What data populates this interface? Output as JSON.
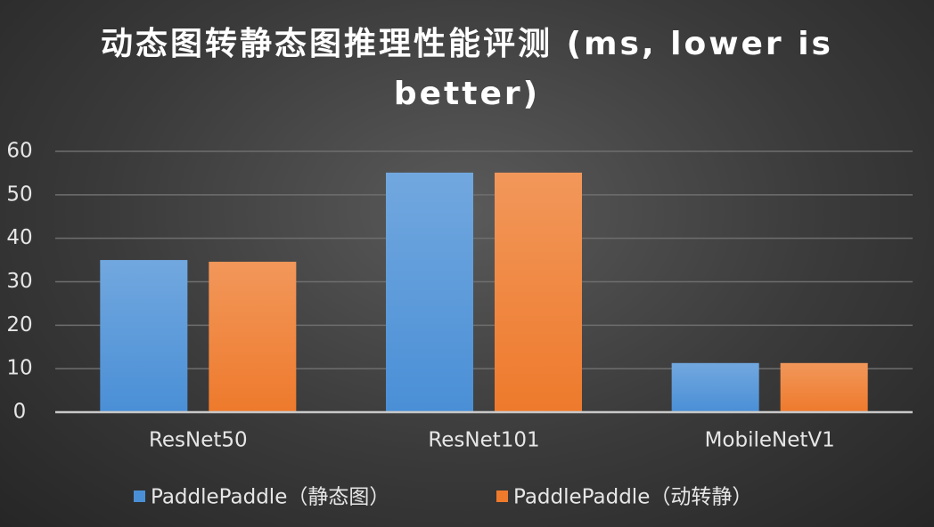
{
  "chart_data": {
    "type": "bar",
    "title": "动态图转静态图推理性能评测 (ms, lower is better)",
    "categories": [
      "ResNet50",
      "ResNet101",
      "MobileNetV1"
    ],
    "series": [
      {
        "name": "PaddlePaddle（静态图）",
        "color": "#4a8fd6",
        "values": [
          35,
          55.1,
          11.3
        ]
      },
      {
        "name": "PaddlePaddle（动转静）",
        "color": "#ee7a2c",
        "values": [
          34.6,
          55.1,
          11.3
        ]
      }
    ],
    "ylim": [
      0,
      60
    ],
    "yticks": [
      0,
      10,
      20,
      30,
      40,
      50,
      60
    ],
    "grid": true
  }
}
